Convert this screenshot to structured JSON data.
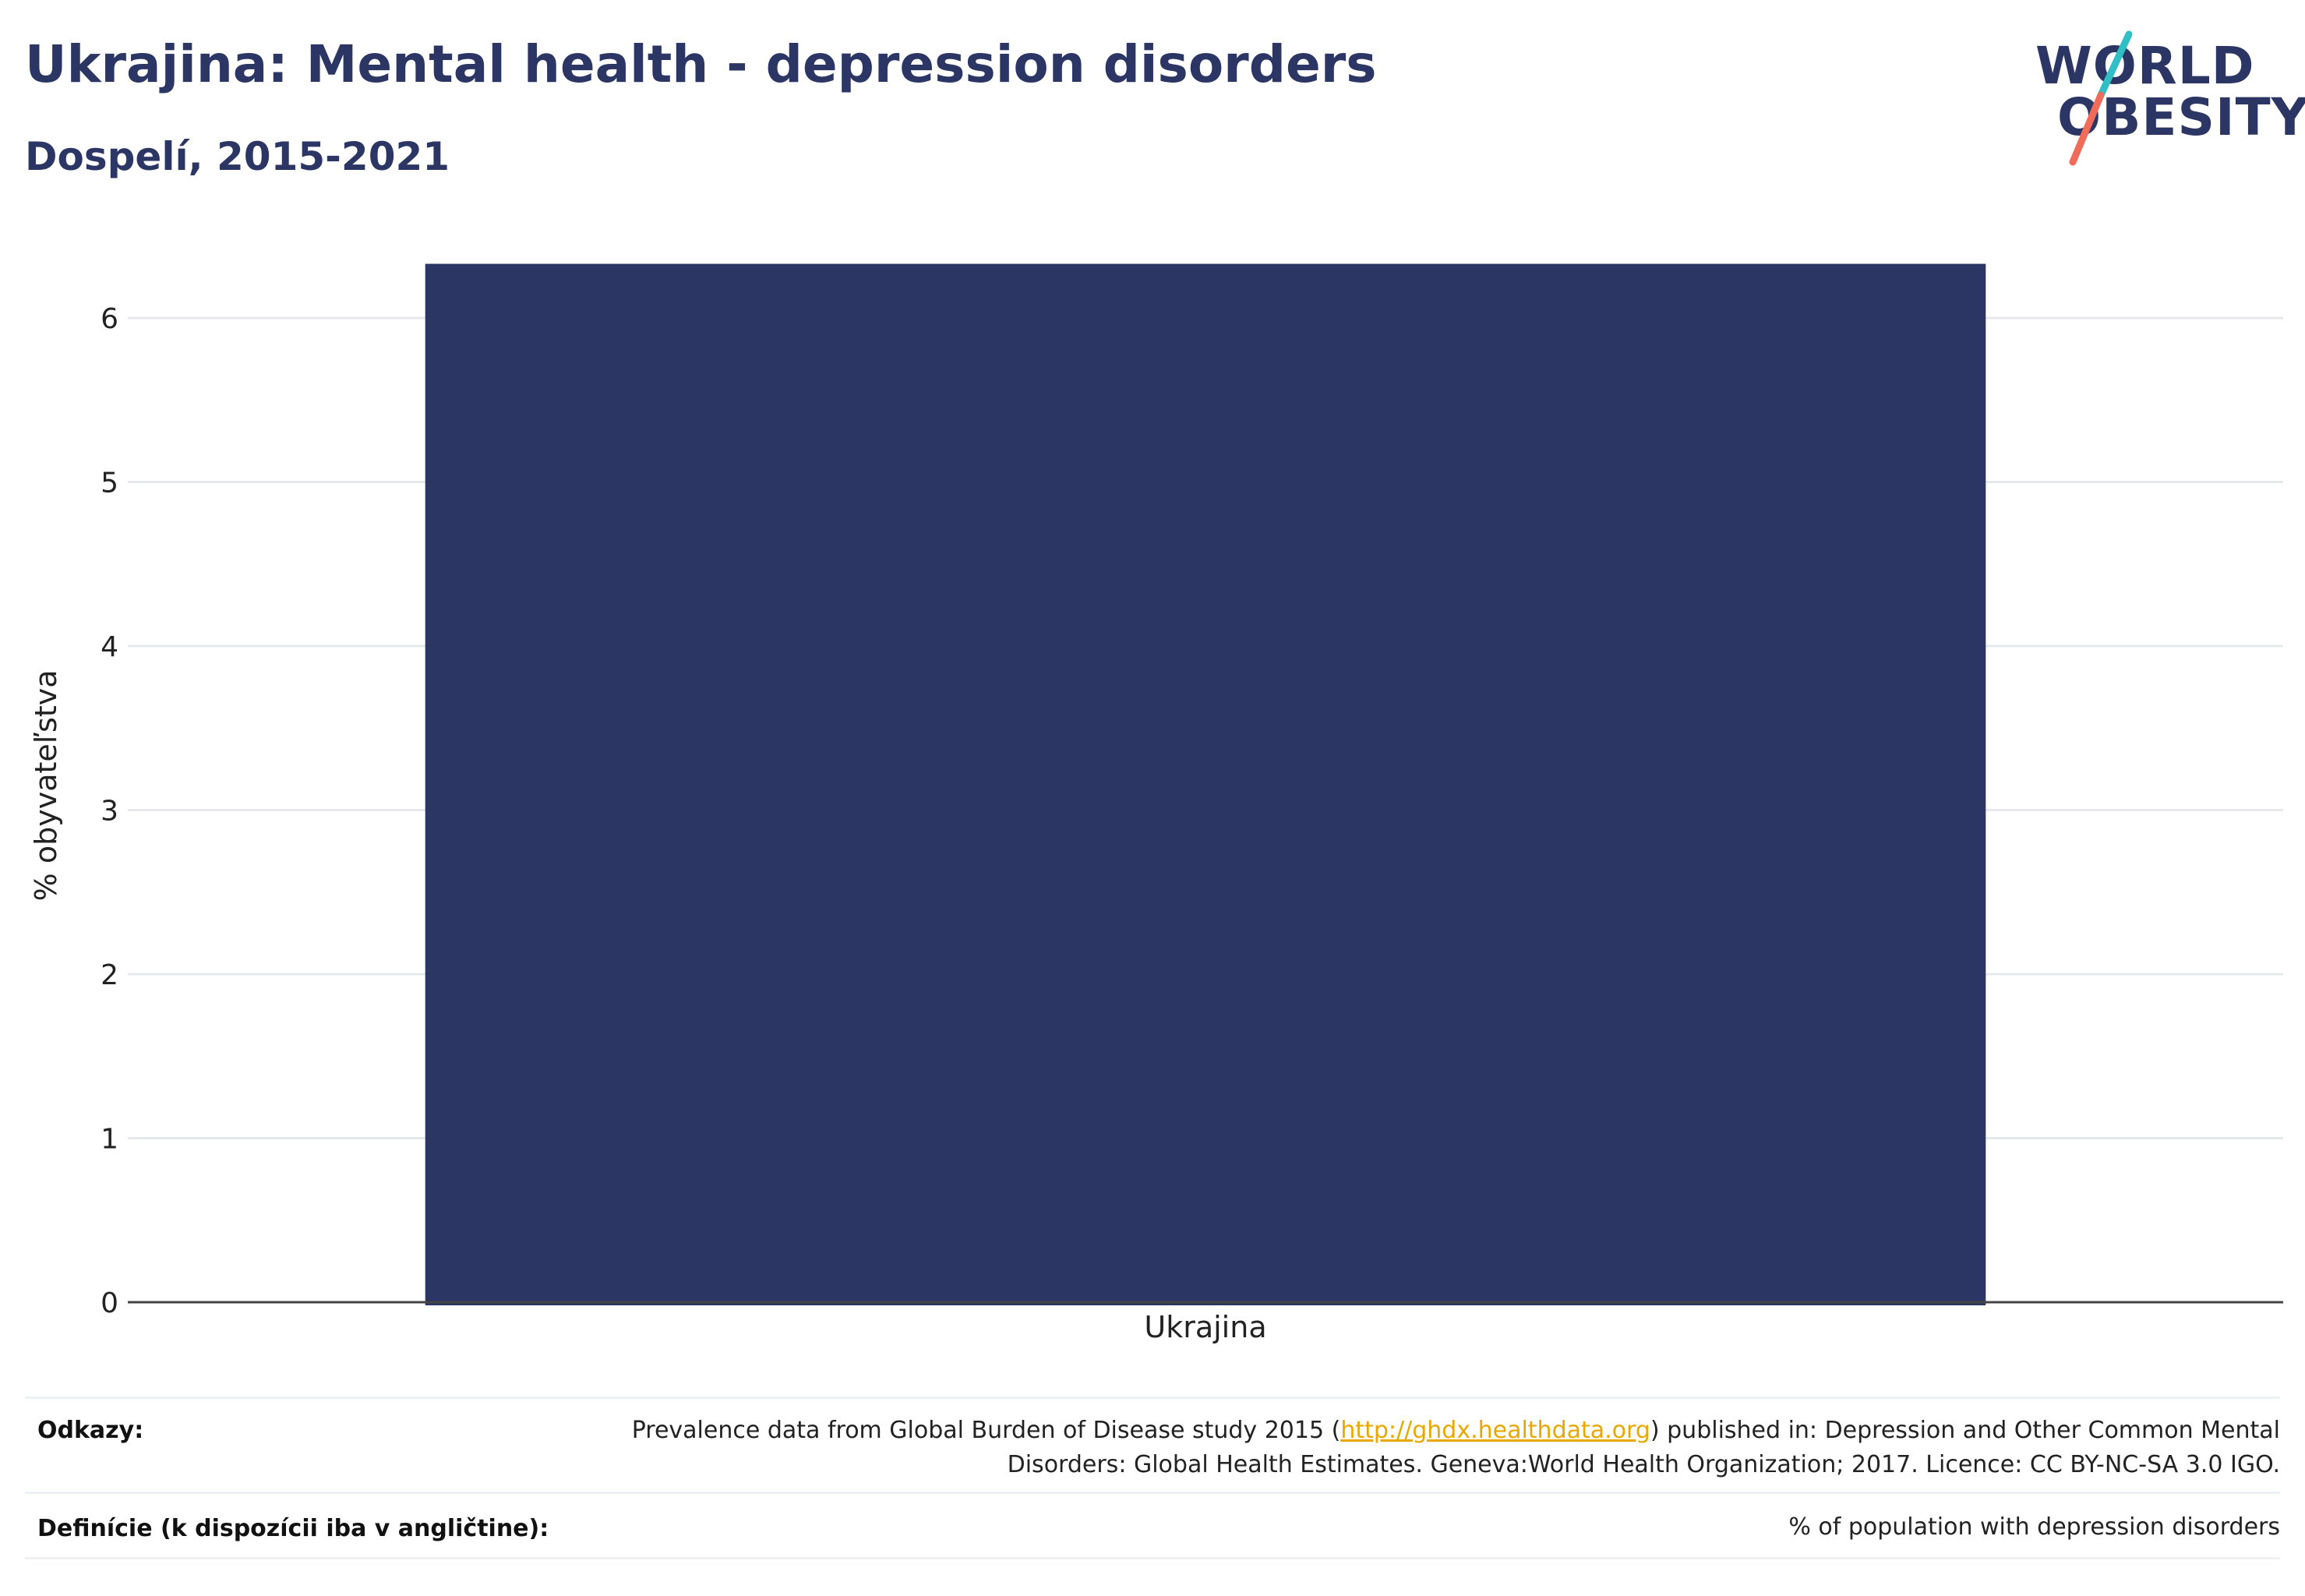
{
  "header": {
    "title": "Ukrajina: Mental health - depression disorders",
    "subtitle": "Dospelí, 2015-2021"
  },
  "logo": {
    "line1": "WORLD",
    "line2": "OBESITY",
    "slash_colors": [
      "#2fbfc4",
      "#ef6b5a"
    ]
  },
  "chart_data": {
    "type": "bar",
    "categories": [
      "Ukrajina"
    ],
    "values": [
      6.33
    ],
    "ylabel": "% obyvateľstva",
    "xlabel": "",
    "ylim": [
      0,
      6.3
    ],
    "yticks": [
      0,
      1,
      2,
      3,
      4,
      5,
      6
    ],
    "grid": true,
    "bar_color": "#2b3664"
  },
  "references": {
    "sources_label": "Odkazy:",
    "sources_text_before": "Prevalence data from Global Burden of Disease study 2015 (",
    "sources_link": "http://ghdx.healthdata.org",
    "sources_text_after": ") published in: Depression and Other Common Mental Disorders: Global Health Estimates. Geneva:World Health Organization; 2017. Licence: CC BY-NC-SA 3.0 IGO.",
    "definitions_label": "Definície (k dispozícii iba v angličtine):",
    "definitions_text": "% of population with depression disorders"
  }
}
